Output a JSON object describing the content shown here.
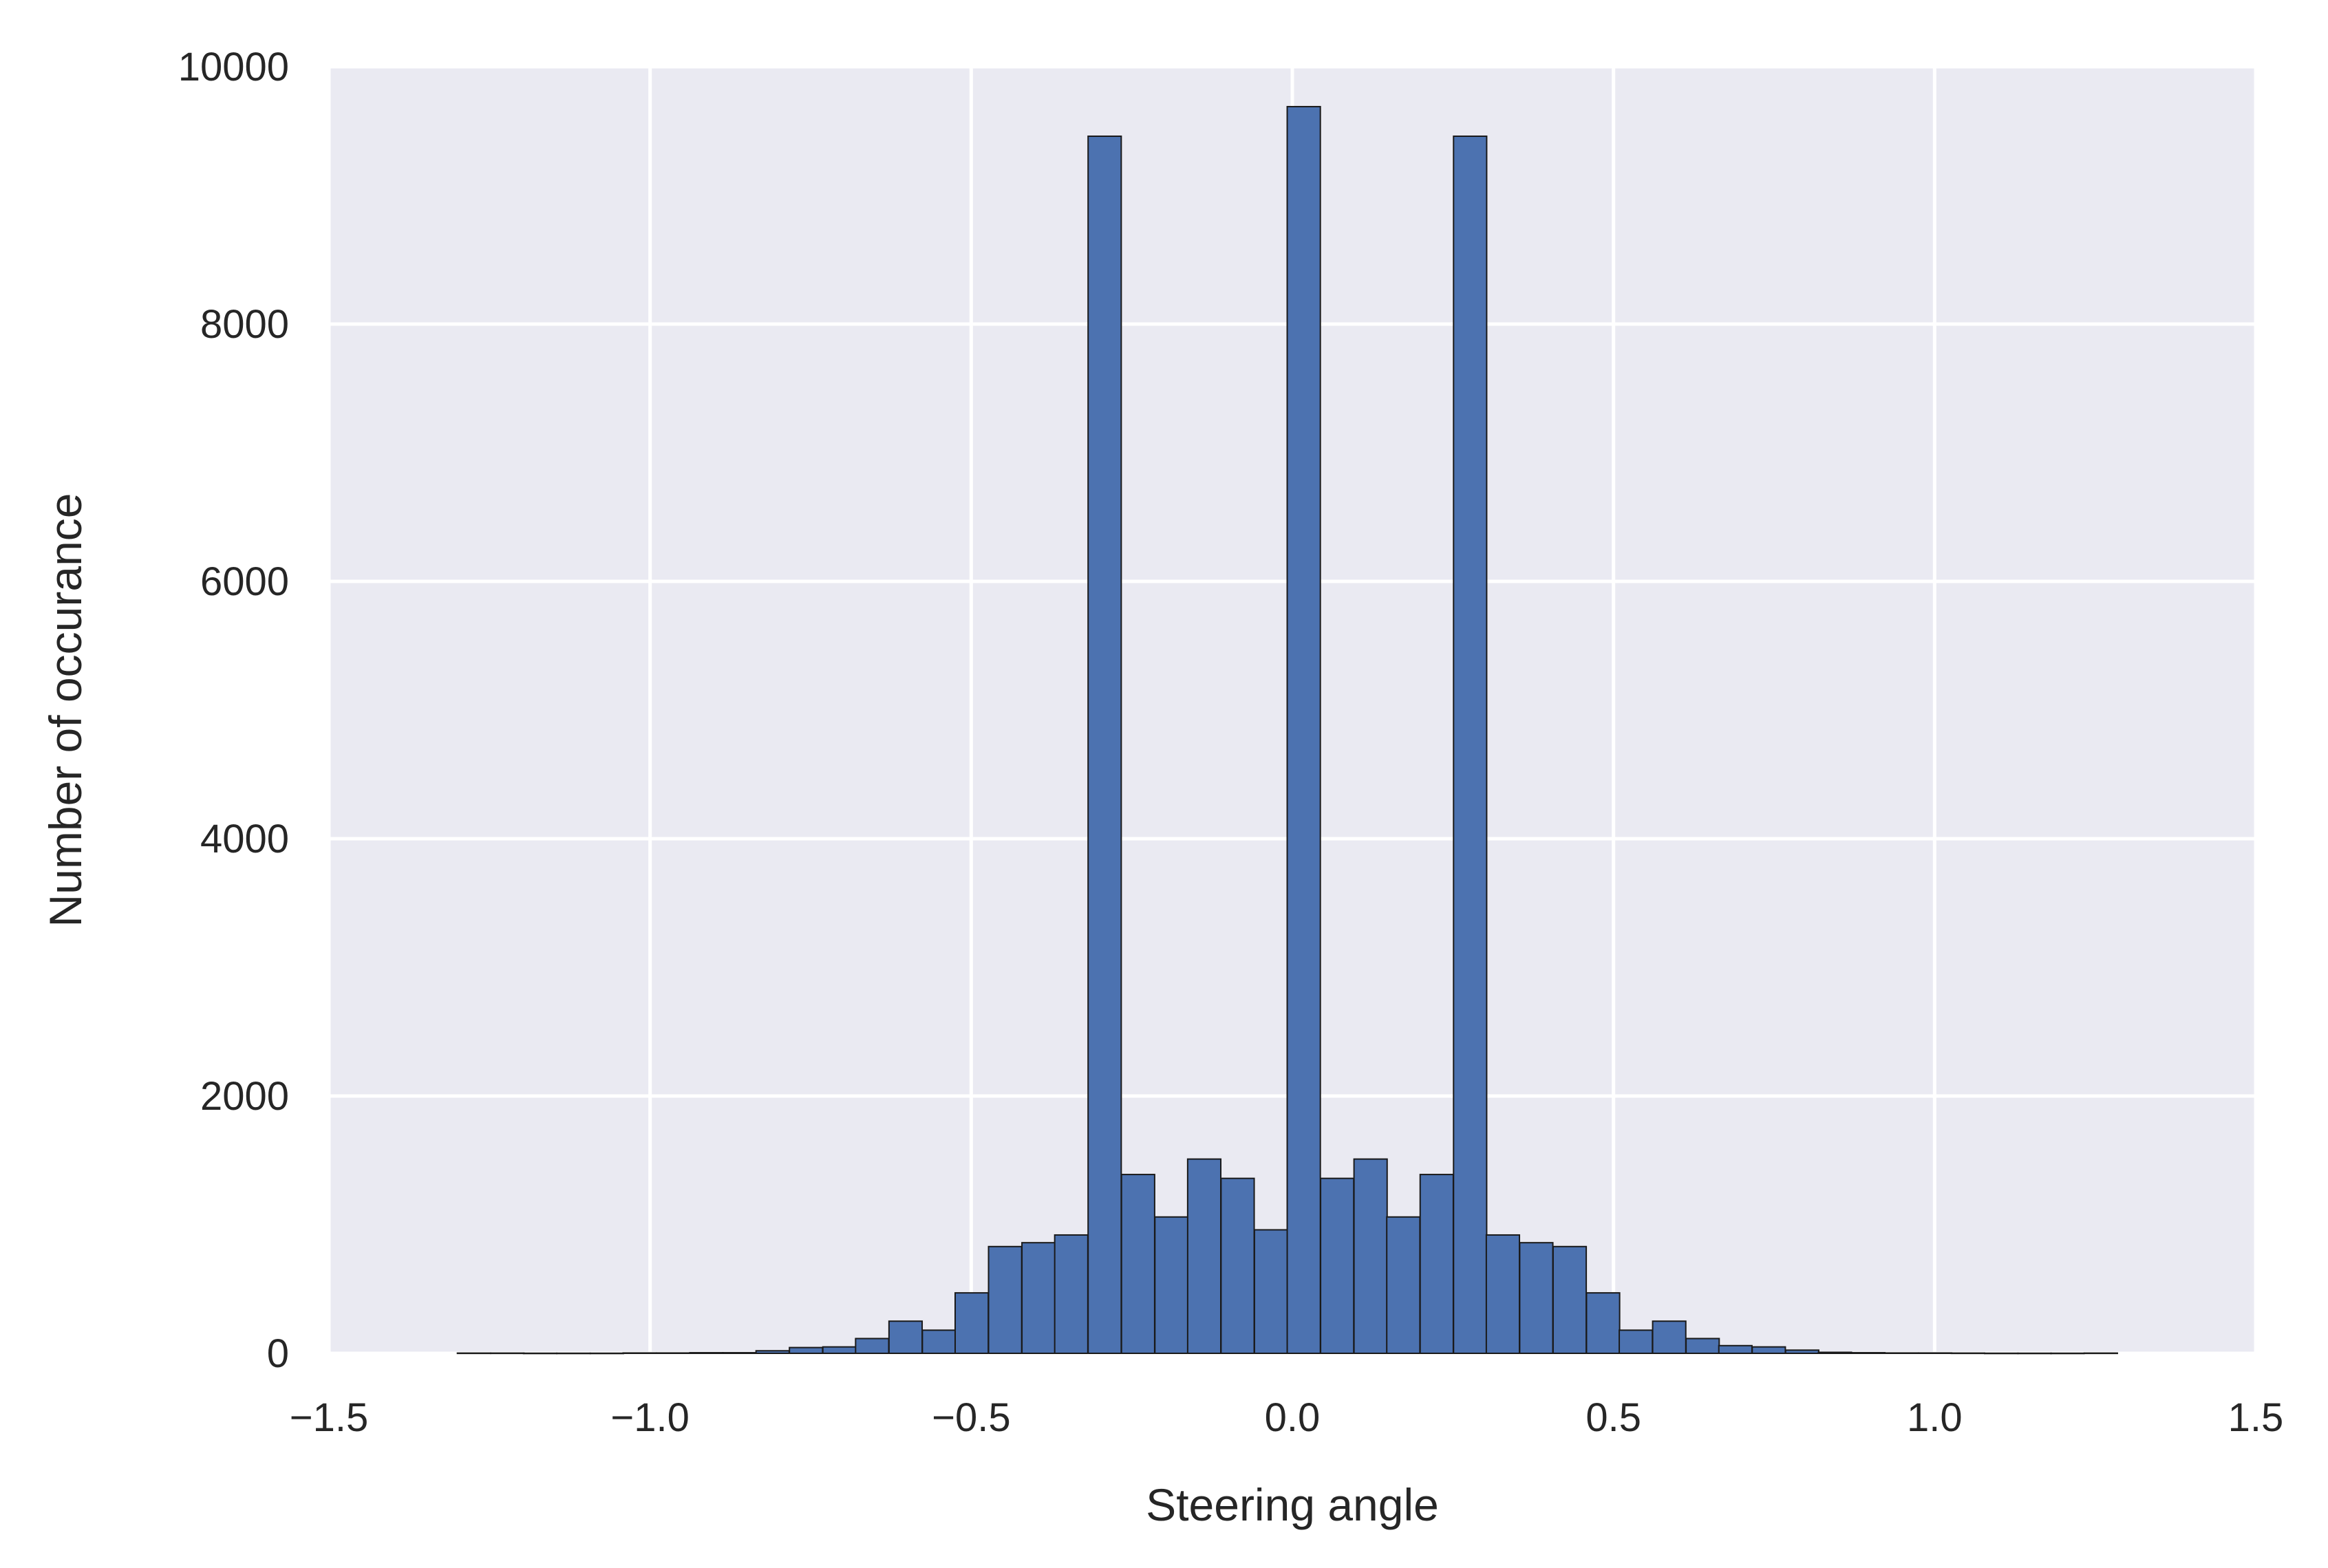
{
  "chart_data": {
    "type": "bar",
    "title": "",
    "xlabel": "Steering angle",
    "ylabel": "Number of occurance",
    "xlim": [
      -1.5,
      1.5
    ],
    "ylim": [
      0,
      10000
    ],
    "xticks": [
      -1.5,
      -1.0,
      -0.5,
      0.0,
      0.5,
      1.0,
      1.5
    ],
    "xtick_labels": [
      "−1.5",
      "−1.0",
      "−0.5",
      "0.0",
      "0.5",
      "1.0",
      "1.5"
    ],
    "yticks": [
      0,
      2000,
      4000,
      6000,
      8000,
      10000
    ],
    "ytick_labels": [
      "0",
      "2000",
      "4000",
      "6000",
      "8000",
      "10000"
    ],
    "grid": true,
    "legend": "none",
    "colors": {
      "bar_fill": "#4C72B0",
      "bar_edge": "#1a1a1a",
      "plot_background": "#EAEAF2",
      "grid": "#ffffff",
      "text": "#262626"
    },
    "bin_width": 0.0516,
    "bins": [
      {
        "x0": -1.3,
        "value": 2
      },
      {
        "x0": -1.248,
        "value": 2
      },
      {
        "x0": -1.197,
        "value": 1
      },
      {
        "x0": -1.145,
        "value": 1
      },
      {
        "x0": -1.093,
        "value": 1
      },
      {
        "x0": -1.042,
        "value": 3
      },
      {
        "x0": -0.99,
        "value": 3
      },
      {
        "x0": -0.938,
        "value": 5
      },
      {
        "x0": -0.887,
        "value": 5
      },
      {
        "x0": -0.835,
        "value": 20
      },
      {
        "x0": -0.783,
        "value": 45
      },
      {
        "x0": -0.731,
        "value": 50
      },
      {
        "x0": -0.68,
        "value": 115
      },
      {
        "x0": -0.628,
        "value": 250
      },
      {
        "x0": -0.576,
        "value": 180
      },
      {
        "x0": -0.525,
        "value": 470
      },
      {
        "x0": -0.473,
        "value": 830
      },
      {
        "x0": -0.421,
        "value": 860
      },
      {
        "x0": -0.37,
        "value": 920
      },
      {
        "x0": -0.318,
        "value": 9460
      },
      {
        "x0": -0.266,
        "value": 1390
      },
      {
        "x0": -0.214,
        "value": 1060
      },
      {
        "x0": -0.163,
        "value": 1510
      },
      {
        "x0": -0.111,
        "value": 1360
      },
      {
        "x0": -0.059,
        "value": 960
      },
      {
        "x0": -0.008,
        "value": 9690
      },
      {
        "x0": 0.044,
        "value": 1360
      },
      {
        "x0": 0.096,
        "value": 1510
      },
      {
        "x0": 0.147,
        "value": 1060
      },
      {
        "x0": 0.199,
        "value": 1390
      },
      {
        "x0": 0.251,
        "value": 9460
      },
      {
        "x0": 0.302,
        "value": 920
      },
      {
        "x0": 0.354,
        "value": 860
      },
      {
        "x0": 0.406,
        "value": 830
      },
      {
        "x0": 0.458,
        "value": 470
      },
      {
        "x0": 0.509,
        "value": 180
      },
      {
        "x0": 0.561,
        "value": 250
      },
      {
        "x0": 0.613,
        "value": 115
      },
      {
        "x0": 0.664,
        "value": 60
      },
      {
        "x0": 0.716,
        "value": 50
      },
      {
        "x0": 0.768,
        "value": 25
      },
      {
        "x0": 0.819,
        "value": 8
      },
      {
        "x0": 0.871,
        "value": 5
      },
      {
        "x0": 0.923,
        "value": 3
      },
      {
        "x0": 0.975,
        "value": 3
      },
      {
        "x0": 1.026,
        "value": 2
      },
      {
        "x0": 1.078,
        "value": 1
      },
      {
        "x0": 1.13,
        "value": 1
      },
      {
        "x0": 1.181,
        "value": 1
      },
      {
        "x0": 1.233,
        "value": 2
      }
    ]
  }
}
